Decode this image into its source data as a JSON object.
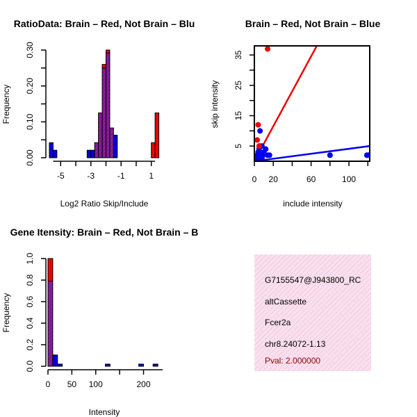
{
  "chart_data": [
    {
      "type": "bar",
      "title": "RatioData: Brain – Red, Not Brain – Blu",
      "xlabel": "Log2 Ratio Skip/Include",
      "ylabel": "Frequency",
      "xlim": [
        -5.75,
        1.75
      ],
      "ylim": [
        0,
        0.3
      ],
      "xticks": [
        -5,
        -3,
        -1,
        1
      ],
      "yticks": [
        0.0,
        0.1,
        0.2,
        0.3
      ],
      "ytick_labels": [
        "0.00",
        "0.10",
        "0.20",
        "0.30"
      ],
      "bin_width": 0.25,
      "series": [
        {
          "name": "Not Brain",
          "color": "#0000dd",
          "bins": [
            {
              "x0": -5.75,
              "v": 0.042
            },
            {
              "x0": -5.5,
              "v": 0.021
            },
            {
              "x0": -3.25,
              "v": 0.021
            },
            {
              "x0": -3.0,
              "v": 0.021
            },
            {
              "x0": -2.75,
              "v": 0.042
            },
            {
              "x0": -2.5,
              "v": 0.125
            },
            {
              "x0": -2.25,
              "v": 0.25
            },
            {
              "x0": -2.0,
              "v": 0.292
            },
            {
              "x0": -1.75,
              "v": 0.083
            },
            {
              "x0": -1.5,
              "v": 0.063
            }
          ]
        },
        {
          "name": "Brain",
          "color": "#ee0000",
          "bins": [
            {
              "x0": -2.75,
              "v": 0.042
            },
            {
              "x0": -2.5,
              "v": 0.125
            },
            {
              "x0": -2.25,
              "v": 0.26
            },
            {
              "x0": -2.0,
              "v": 0.3
            },
            {
              "x0": -1.75,
              "v": 0.083
            },
            {
              "x0": 1.0,
              "v": 0.042
            },
            {
              "x0": 1.25,
              "v": 0.125
            }
          ]
        }
      ]
    },
    {
      "type": "scatter",
      "title": "Brain – Red, Not Brain – Blue",
      "xlabel": "include intensity",
      "ylabel": "skip intensity",
      "xlim": [
        0,
        122
      ],
      "ylim": [
        0,
        38
      ],
      "xticks": [
        0,
        20,
        60,
        100
      ],
      "yticks": [
        5,
        15,
        25,
        35
      ],
      "series": [
        {
          "name": "Brain",
          "color": "#ee0000",
          "points": [
            [
              14,
              37
            ],
            [
              4,
              12
            ],
            [
              3,
              7
            ],
            [
              5,
              5
            ]
          ],
          "fit_line": {
            "x": [
              0,
              66
            ],
            "y": [
              0,
              38
            ]
          }
        },
        {
          "name": "Not Brain",
          "color": "#0000ee",
          "points": [
            [
              6,
              10
            ],
            [
              5,
              4
            ],
            [
              6,
              3
            ],
            [
              7,
              2
            ],
            [
              8,
              5
            ],
            [
              9,
              2
            ],
            [
              10,
              3
            ],
            [
              12,
              4
            ],
            [
              14,
              2
            ],
            [
              16,
              2
            ],
            [
              3,
              2
            ],
            [
              4,
              3
            ],
            [
              5,
              1
            ],
            [
              6,
              5
            ],
            [
              2,
              1
            ],
            [
              8,
              1
            ],
            [
              80,
              2
            ],
            [
              119,
              2
            ],
            [
              121,
              2
            ]
          ],
          "fit_line": {
            "x": [
              0,
              122
            ],
            "y": [
              0,
              5
            ]
          }
        }
      ]
    },
    {
      "type": "bar",
      "title": "Gene Itensity: Brain – Red, Not Brain – B",
      "xlabel": "Intensity",
      "ylabel": "Frequency",
      "xlim": [
        0,
        240
      ],
      "ylim": [
        0,
        1.0
      ],
      "xticks": [
        0,
        50,
        100,
        200
      ],
      "yticks": [
        0.0,
        0.2,
        0.4,
        0.6,
        0.8,
        1.0
      ],
      "ytick_labels": [
        "0.0",
        "0.2",
        "0.4",
        "0.6",
        "0.8",
        "1.0"
      ],
      "bin_width": 10,
      "series": [
        {
          "name": "Not Brain",
          "color": "#0000dd",
          "bins": [
            {
              "x0": 0,
              "v": 0.79
            },
            {
              "x0": 10,
              "v": 0.105
            },
            {
              "x0": 20,
              "v": 0.02
            },
            {
              "x0": 120,
              "v": 0.02
            },
            {
              "x0": 190,
              "v": 0.02
            },
            {
              "x0": 220,
              "v": 0.02
            }
          ]
        },
        {
          "name": "Brain",
          "color": "#ee0000",
          "bins": [
            {
              "x0": 0,
              "v": 1.0
            }
          ]
        }
      ]
    }
  ],
  "info_panel": {
    "id": "G7155547@J943800_RC",
    "event_type": "altCassette",
    "gene": "Fcer2a",
    "location": "chr8.24072-1.13",
    "pval": "Pval: 2.000000",
    "background": "#f8dcec"
  }
}
